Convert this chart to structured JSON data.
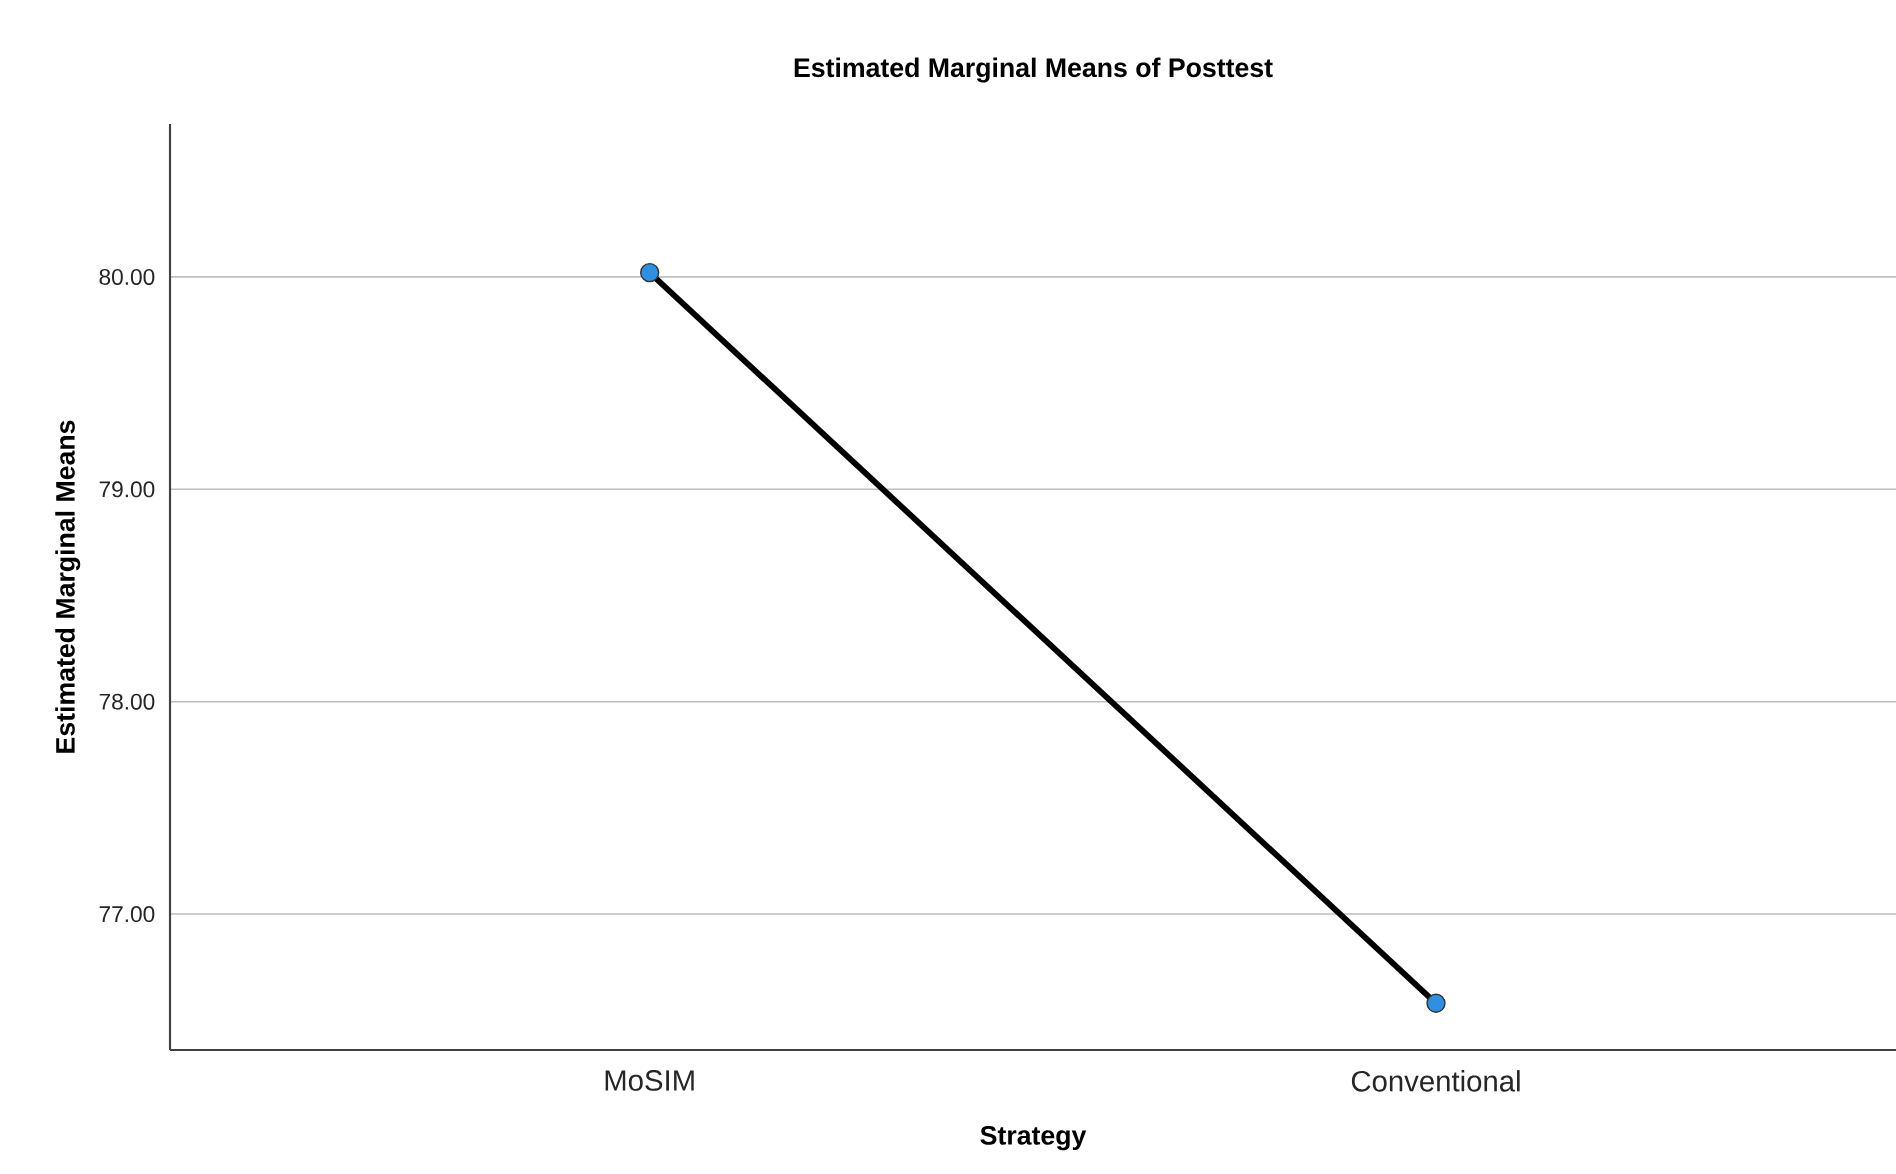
{
  "chart_data": {
    "type": "line",
    "title": "Estimated Marginal Means of Posttest",
    "xlabel": "Strategy",
    "ylabel": "Estimated Marginal Means",
    "categories": [
      "MoSIM",
      "Conventional"
    ],
    "series": [
      {
        "color": "#000000",
        "colors": [
          "#2f8fe0",
          "#2f8fe0"
        ],
        "values": [
          80.02,
          76.58
        ]
      }
    ],
    "ylim": [
      76.36,
      80.72
    ],
    "yticks": [
      {
        "value": 77,
        "label": "77.00"
      },
      {
        "value": 78,
        "label": "78.00"
      },
      {
        "value": 79,
        "label": "79.00"
      },
      {
        "value": 80,
        "label": "80.00"
      }
    ],
    "grid": "y",
    "marker": "circle",
    "line_style": "solid"
  }
}
